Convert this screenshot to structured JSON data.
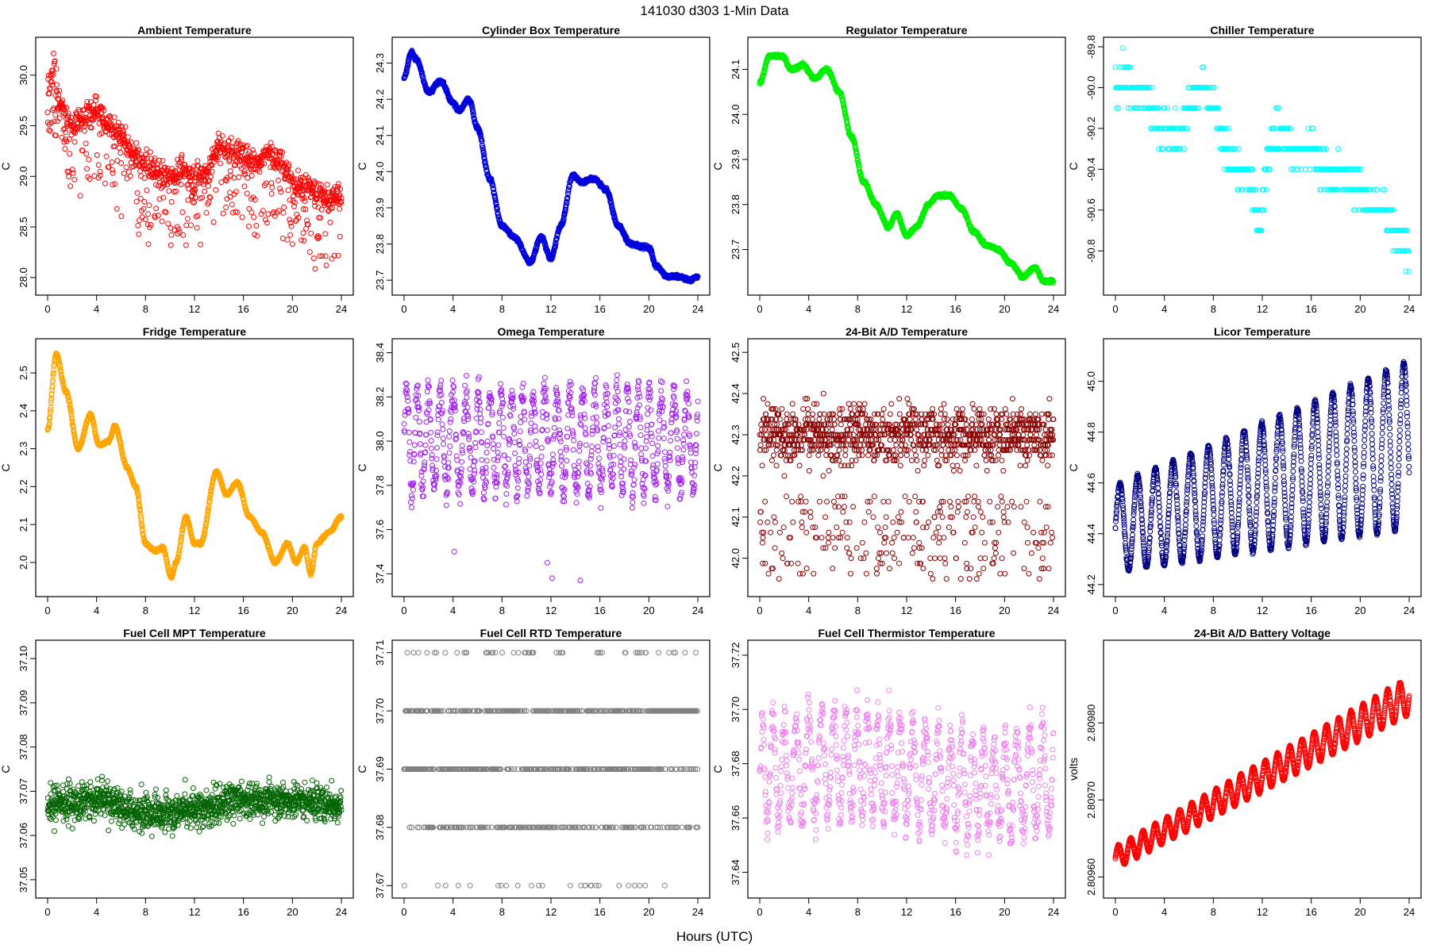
{
  "figure": {
    "title": "141030   d303   1-Min Data",
    "xlabel": "Hours (UTC)"
  },
  "chart_data": [
    {
      "type": "scatter",
      "title": "Ambient Temperature",
      "ylabel": "C",
      "color": "#ff0000",
      "xlim": [
        0,
        24
      ],
      "ylim": [
        27.92,
        30.28
      ],
      "xticks": [
        0,
        4,
        8,
        12,
        16,
        20,
        24
      ],
      "yticks": [
        "28.0",
        "28.5",
        "29.0",
        "29.5",
        "30.0"
      ],
      "kind": "noisy",
      "keypoints": [
        [
          0.1,
          29.9
        ],
        [
          0.5,
          30.1
        ],
        [
          1,
          29.7
        ],
        [
          2,
          29.5
        ],
        [
          3,
          29.6
        ],
        [
          4,
          29.65
        ],
        [
          5,
          29.5
        ],
        [
          6,
          29.4
        ],
        [
          7,
          29.2
        ],
        [
          8,
          29.1
        ],
        [
          9,
          29.05
        ],
        [
          10,
          29.0
        ],
        [
          11,
          29.05
        ],
        [
          12,
          29.0
        ],
        [
          13,
          29.05
        ],
        [
          14,
          29.3
        ],
        [
          15,
          29.25
        ],
        [
          16,
          29.2
        ],
        [
          17,
          29.15
        ],
        [
          18,
          29.25
        ],
        [
          19,
          29.15
        ],
        [
          20,
          28.95
        ],
        [
          21,
          28.9
        ],
        [
          22,
          28.85
        ],
        [
          23,
          28.75
        ],
        [
          24,
          28.8
        ]
      ],
      "spread": 0.22,
      "outlier_prob": 0.25,
      "outlier_depth": 0.7,
      "n": 1100
    },
    {
      "type": "scatter",
      "title": "Cylinder Box Temperature",
      "ylabel": "C",
      "color": "#0000dd",
      "xlim": [
        0,
        24
      ],
      "ylim": [
        23.685,
        24.345
      ],
      "xticks": [
        0,
        4,
        8,
        12,
        16,
        20,
        24
      ],
      "yticks": [
        "23.7",
        "23.8",
        "23.9",
        "24.0",
        "24.1",
        "24.2",
        "24.3"
      ],
      "kind": "smooth",
      "keypoints": [
        [
          0,
          24.26
        ],
        [
          0.6,
          24.33
        ],
        [
          1,
          24.31
        ],
        [
          2,
          24.22
        ],
        [
          3,
          24.25
        ],
        [
          4,
          24.19
        ],
        [
          4.5,
          24.17
        ],
        [
          5.3,
          24.2
        ],
        [
          6,
          24.12
        ],
        [
          7,
          23.98
        ],
        [
          8,
          23.85
        ],
        [
          9,
          23.82
        ],
        [
          10.3,
          23.75
        ],
        [
          11.2,
          23.82
        ],
        [
          12,
          23.76
        ],
        [
          12.8,
          23.85
        ],
        [
          13.8,
          23.99
        ],
        [
          14.5,
          23.97
        ],
        [
          15.5,
          23.98
        ],
        [
          16.5,
          23.95
        ],
        [
          17.5,
          23.85
        ],
        [
          18.5,
          23.8
        ],
        [
          20,
          23.79
        ],
        [
          20.6,
          23.74
        ],
        [
          21.5,
          23.71
        ],
        [
          22.5,
          23.71
        ],
        [
          23.3,
          23.7
        ],
        [
          24,
          23.71
        ]
      ],
      "noise": 0.004,
      "n": 1400
    },
    {
      "type": "scatter",
      "title": "Regulator Temperature",
      "ylabel": "C",
      "color": "#00ee00",
      "xlim": [
        0,
        24
      ],
      "ylim": [
        23.62,
        24.15
      ],
      "xticks": [
        0,
        4,
        8,
        12,
        16,
        20,
        24
      ],
      "yticks": [
        "23.7",
        "23.8",
        "23.9",
        "24.0",
        "24.1"
      ],
      "kind": "smooth",
      "keypoints": [
        [
          0,
          24.07
        ],
        [
          0.8,
          24.13
        ],
        [
          1.8,
          24.13
        ],
        [
          2.6,
          24.1
        ],
        [
          3.5,
          24.11
        ],
        [
          4.5,
          24.08
        ],
        [
          5.5,
          24.1
        ],
        [
          6.5,
          24.05
        ],
        [
          7.5,
          23.95
        ],
        [
          8.5,
          23.85
        ],
        [
          9.5,
          23.8
        ],
        [
          10.5,
          23.75
        ],
        [
          11.2,
          23.78
        ],
        [
          12,
          23.73
        ],
        [
          12.8,
          23.75
        ],
        [
          13.8,
          23.8
        ],
        [
          14.5,
          23.82
        ],
        [
          15.5,
          23.82
        ],
        [
          16.5,
          23.79
        ],
        [
          17.5,
          23.74
        ],
        [
          18.5,
          23.71
        ],
        [
          19.5,
          23.7
        ],
        [
          20.5,
          23.67
        ],
        [
          21.5,
          23.64
        ],
        [
          22.5,
          23.66
        ],
        [
          23.2,
          23.63
        ],
        [
          24,
          23.63
        ]
      ],
      "noise": 0.003,
      "n": 1400
    },
    {
      "type": "scatter",
      "title": "Chiller Temperature",
      "ylabel": "C",
      "color": "#00ffff",
      "xlim": [
        0,
        24
      ],
      "ylim": [
        -90.97,
        -89.8
      ],
      "xticks": [
        0,
        4,
        8,
        12,
        16,
        20,
        24
      ],
      "yticks": [
        "-89.8",
        "-90.0",
        "-90.2",
        "-90.4",
        "-90.6",
        "-90.8"
      ],
      "kind": "steps",
      "keypoints": [
        [
          0,
          -90.0
        ],
        [
          1,
          -89.95
        ],
        [
          2,
          -90.0
        ],
        [
          3,
          -90.1
        ],
        [
          4,
          -90.2
        ],
        [
          5,
          -90.25
        ],
        [
          6,
          -90.1
        ],
        [
          7,
          -90.0
        ],
        [
          8,
          -90.1
        ],
        [
          9,
          -90.3
        ],
        [
          10,
          -90.4
        ],
        [
          11,
          -90.45
        ],
        [
          11.8,
          -90.7
        ],
        [
          12.5,
          -90.3
        ],
        [
          13.5,
          -90.2
        ],
        [
          14.5,
          -90.3
        ],
        [
          16,
          -90.3
        ],
        [
          17,
          -90.4
        ],
        [
          19,
          -90.45
        ],
        [
          20,
          -90.5
        ],
        [
          21,
          -90.6
        ],
        [
          22,
          -90.6
        ],
        [
          23,
          -90.7
        ],
        [
          24,
          -90.8
        ]
      ],
      "spread": 0.15,
      "quant": 0.1,
      "n": 650
    },
    {
      "type": "scatter",
      "title": "Fridge Temperature",
      "ylabel": "C",
      "color": "#ffa500",
      "xlim": [
        0,
        24
      ],
      "ylim": [
        1.935,
        2.565
      ],
      "xticks": [
        0,
        4,
        8,
        12,
        16,
        20,
        24
      ],
      "yticks": [
        "2.0",
        "2.1",
        "2.2",
        "2.3",
        "2.4",
        "2.5"
      ],
      "kind": "smooth",
      "keypoints": [
        [
          0,
          2.35
        ],
        [
          0.7,
          2.55
        ],
        [
          1.5,
          2.45
        ],
        [
          2.5,
          2.3
        ],
        [
          3.5,
          2.39
        ],
        [
          4.2,
          2.31
        ],
        [
          5,
          2.32
        ],
        [
          5.5,
          2.36
        ],
        [
          6.5,
          2.25
        ],
        [
          7.2,
          2.2
        ],
        [
          8,
          2.05
        ],
        [
          8.8,
          2.03
        ],
        [
          9.4,
          2.04
        ],
        [
          10.1,
          1.96
        ],
        [
          10.5,
          2.0
        ],
        [
          11.3,
          2.12
        ],
        [
          12,
          2.05
        ],
        [
          12.5,
          2.05
        ],
        [
          13.8,
          2.24
        ],
        [
          14.6,
          2.18
        ],
        [
          15.5,
          2.21
        ],
        [
          16.5,
          2.12
        ],
        [
          17.5,
          2.08
        ],
        [
          18.6,
          2.0
        ],
        [
          19.6,
          2.05
        ],
        [
          20.3,
          2.0
        ],
        [
          21,
          2.04
        ],
        [
          21.5,
          1.97
        ],
        [
          22,
          2.05
        ],
        [
          23,
          2.08
        ],
        [
          24,
          2.12
        ]
      ],
      "noise": 0.003,
      "n": 1400
    },
    {
      "type": "scatter",
      "title": "Omega Temperature",
      "ylabel": "C",
      "color": "#a020f0",
      "xlim": [
        0,
        24
      ],
      "ylim": [
        37.34,
        38.42
      ],
      "xticks": [
        0,
        4,
        8,
        12,
        16,
        20,
        24
      ],
      "yticks": [
        "37.4",
        "37.6",
        "37.8",
        "38.0",
        "38.2",
        "38.4"
      ],
      "kind": "oscillate",
      "base": 38.0,
      "amp": 0.26,
      "period": 0.95,
      "noise": 0.05,
      "outliers": [
        [
          4.1,
          37.5
        ],
        [
          11.7,
          37.45
        ],
        [
          12.1,
          37.38
        ],
        [
          14.4,
          37.37
        ]
      ],
      "n": 1000
    },
    {
      "type": "scatter",
      "title": "24-Bit A/D Temperature",
      "ylabel": "C",
      "color": "#8b0000",
      "xlim": [
        0,
        24
      ],
      "ylim": [
        41.93,
        42.51
      ],
      "xticks": [
        0,
        4,
        8,
        12,
        16,
        20,
        24
      ],
      "yticks": [
        "42.0",
        "42.1",
        "42.2",
        "42.3",
        "42.4",
        "42.5"
      ],
      "kind": "quantized",
      "base": 42.3,
      "spread": 0.09,
      "quant": 0.0125,
      "outlier_prob": 0.18,
      "outlier_low": 41.95,
      "n": 1300
    },
    {
      "type": "scatter",
      "title": "Licor Temperature",
      "ylabel": "C",
      "color": "#000080",
      "xlim": [
        0,
        24
      ],
      "ylim": [
        44.19,
        45.13
      ],
      "xticks": [
        0,
        4,
        8,
        12,
        16,
        20,
        24
      ],
      "yticks": [
        "44.2",
        "44.4",
        "44.6",
        "44.8",
        "45.0"
      ],
      "kind": "sinetrend",
      "base_start": 44.42,
      "base_end": 44.75,
      "amp_start": 0.17,
      "amp_end": 0.33,
      "period": 1.45,
      "noise": 0.006,
      "n": 1500
    },
    {
      "type": "scatter",
      "title": "Fuel Cell MPT Temperature",
      "ylabel": "C",
      "color": "#006400",
      "xlim": [
        0,
        24
      ],
      "ylim": [
        37.048,
        37.102
      ],
      "xticks": [
        0,
        4,
        8,
        12,
        16,
        20,
        24
      ],
      "yticks": [
        "37.05",
        "37.06",
        "37.07",
        "37.08",
        "37.09",
        "37.10"
      ],
      "kind": "noisy",
      "keypoints": [
        [
          0,
          37.067
        ],
        [
          4,
          37.068
        ],
        [
          8,
          37.065
        ],
        [
          12,
          37.066
        ],
        [
          16,
          37.068
        ],
        [
          20,
          37.068
        ],
        [
          24,
          37.067
        ]
      ],
      "spread": 0.007,
      "outlier_prob": 0.01,
      "outlier_depth": 0.004,
      "n": 1300
    },
    {
      "type": "scatter",
      "title": "Fuel Cell RTD Temperature",
      "ylabel": "C",
      "color": "#808080",
      "xlim": [
        0,
        24
      ],
      "ylim": [
        37.6695,
        37.7105
      ],
      "xticks": [
        0,
        4,
        8,
        12,
        16,
        20,
        24
      ],
      "yticks": [
        "37.67",
        "37.68",
        "37.69",
        "37.70",
        "37.71"
      ],
      "kind": "levels",
      "levels": [
        37.67,
        37.68,
        37.69,
        37.7,
        37.71
      ],
      "n": 900
    },
    {
      "type": "scatter",
      "title": "Fuel Cell Thermistor Temperature",
      "ylabel": "C",
      "color": "#ee82ee",
      "xlim": [
        0,
        24
      ],
      "ylim": [
        37.634,
        37.722
      ],
      "xticks": [
        0,
        4,
        8,
        12,
        16,
        20,
        24
      ],
      "yticks": [
        "37.64",
        "37.66",
        "37.68",
        "37.70",
        "37.72"
      ],
      "kind": "oscillate",
      "base": 37.676,
      "amp": 0.022,
      "period": 0.95,
      "noise": 0.005,
      "trend": 0.004,
      "outliers": [],
      "n": 1000
    },
    {
      "type": "scatter",
      "title": "24-Bit A/D Battery Voltage",
      "ylabel": "volts",
      "color": "#ff0000",
      "xlim": [
        0,
        24
      ],
      "ylim": [
        2.809585,
        2.809895
      ],
      "xticks": [
        0,
        4,
        8,
        12,
        16,
        20,
        24
      ],
      "yticks": [
        "2.80960",
        "2.80970",
        "2.80980"
      ],
      "kind": "sinetrend",
      "base_start": 2.809625,
      "base_end": 2.809835,
      "amp_start": 1.4e-05,
      "amp_end": 2.4e-05,
      "period": 1.0,
      "noise": 8e-07,
      "n": 1500
    }
  ]
}
